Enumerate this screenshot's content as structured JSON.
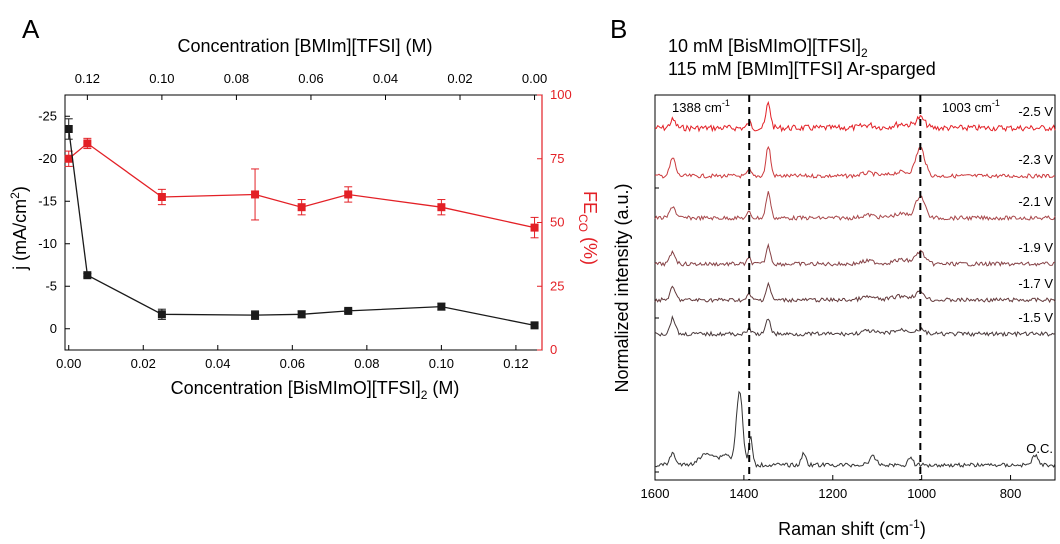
{
  "panel_a": {
    "letter": "A",
    "xlabel_main": "Concentration [BisMImO][TFSI]",
    "xlabel_main_sub": "2",
    "xlabel_main_unit": " (M)",
    "xlabel_top": "Concentration [BMIm][TFSI] (M)",
    "ylabel_left_main": "j (mA/cm",
    "ylabel_left_sup": "2",
    "ylabel_left_end": ")",
    "ylabel_right_main": "FE",
    "ylabel_right_sub": "CO",
    "ylabel_right_end": " (%)"
  },
  "panel_b": {
    "letter": "B",
    "title_line1": "10 mM [BisMImO][TFSI]",
    "title_line1_sub": "2",
    "title_line2": "115 mM [BMIm][TFSI] Ar-sparged",
    "xlabel_main": "Raman shift (cm",
    "xlabel_sup": "-1",
    "xlabel_end": ")",
    "ylabel": "Normalized intensity (a.u.)",
    "marker1_value": "1388 cm",
    "marker2_value": "1003 cm",
    "marker_sup": "-1"
  },
  "colors": {
    "black_series": "#1a1a1a",
    "red_series": "#e32026"
  },
  "chart_data": [
    {
      "type": "scatter",
      "x": [
        0.0,
        0.005,
        0.025,
        0.05,
        0.0625,
        0.075,
        0.1,
        0.125
      ],
      "xticks": [
        "0.00",
        "0.02",
        "0.04",
        "0.06",
        "0.08",
        "0.10",
        "0.12"
      ],
      "xlim": [
        -0.001,
        0.127
      ],
      "x2ticks": [
        {
          "label": "0.12",
          "x": 0.005
        },
        {
          "label": "0.10",
          "x": 0.025
        },
        {
          "label": "0.08",
          "x": 0.045
        },
        {
          "label": "0.06",
          "x": 0.065
        },
        {
          "label": "0.04",
          "x": 0.085
        },
        {
          "label": "0.02",
          "x": 0.105
        },
        {
          "label": "0.00",
          "x": 0.125
        }
      ],
      "y_left": {
        "lim": [
          2.5,
          -27.5
        ],
        "ticks": [
          "-25",
          "-20",
          "-15",
          "-10",
          "-5",
          "0"
        ],
        "series": [
          {
            "values": [
              -23.5,
              -6.3,
              -1.7,
              -1.6,
              -1.7,
              -2.1,
              -2.6,
              -0.4
            ],
            "errors": [
              1.2,
              0.2,
              0.6,
              0.5,
              0.4,
              0.2,
              0.4,
              0.2
            ],
            "color": "#1a1a1a"
          }
        ]
      },
      "y_right": {
        "lim": [
          0,
          100
        ],
        "ticks": [
          "0",
          "25",
          "50",
          "75",
          "100"
        ],
        "series": [
          {
            "values": [
              75,
              81,
              60,
              61,
              56,
              61,
              56,
              48
            ],
            "errors": [
              3,
              2,
              3,
              10,
              3,
              3,
              3,
              4
            ],
            "color": "#e32026"
          }
        ]
      }
    },
    {
      "type": "line",
      "xlim": [
        1600,
        700
      ],
      "xticks": [
        "1600",
        "1400",
        "1200",
        "1000",
        "800"
      ],
      "markers": [
        1388,
        1003
      ],
      "series": [
        {
          "name": "-2.5 V",
          "color": "#e32026"
        },
        {
          "name": "-2.3 V",
          "color": "#cc3a3d"
        },
        {
          "name": "-2.1 V",
          "color": "#a8474a"
        },
        {
          "name": "-1.9 V",
          "color": "#864246"
        },
        {
          "name": "-1.7 V",
          "color": "#643a3c"
        },
        {
          "name": "-1.5 V",
          "color": "#48383a"
        },
        {
          "name": "O.C.",
          "color": "#333333"
        }
      ],
      "peaks": [
        1560,
        1410,
        1388,
        1345,
        1003
      ]
    }
  ]
}
